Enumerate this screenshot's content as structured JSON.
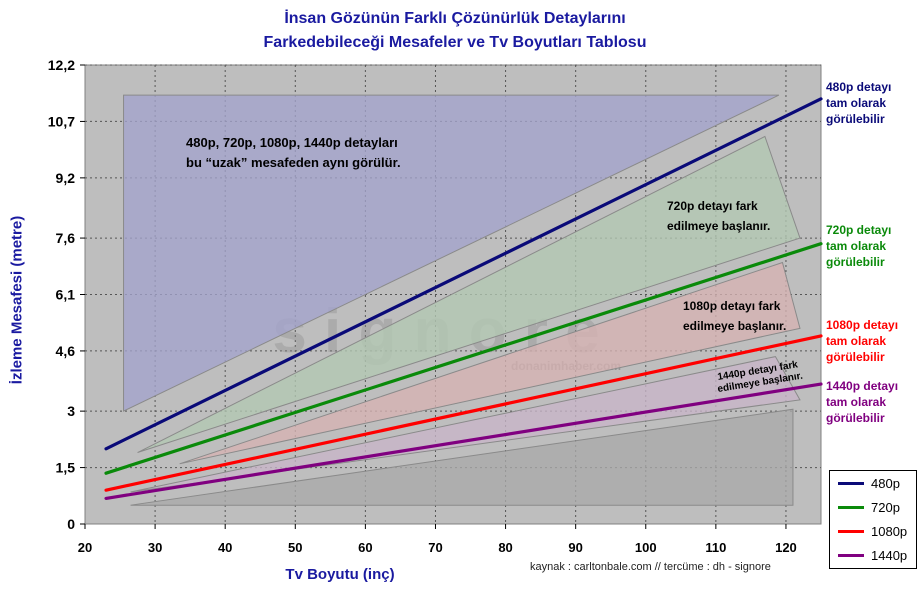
{
  "title": {
    "line1": "İnsan Gözünün Farklı Çözünürlük Detaylarını",
    "line2": "Farkedebileceği Mesafeler ve Tv Boyutları Tablosu"
  },
  "source": "kaynak : carltonbale.com // tercüme : dh - signore",
  "watermark": {
    "main": "s i g n o r e",
    "sub": "donanimhaber.com"
  },
  "chart_data": {
    "type": "line",
    "xlabel": "Tv Boyutu (inç)",
    "ylabel": "İzleme Mesafesi (metre)",
    "xlim": [
      20,
      125
    ],
    "ylim": [
      0,
      12.2
    ],
    "x_ticks": [
      20,
      30,
      40,
      50,
      60,
      70,
      80,
      90,
      100,
      110,
      120
    ],
    "y_ticks": [
      0,
      1.5,
      3,
      4.6,
      6.1,
      7.6,
      9.2,
      10.7,
      12.2
    ],
    "y_tick_labels": [
      "0",
      "1,5",
      "3",
      "4,6",
      "6,1",
      "7,6",
      "9,2",
      "10,7",
      "12,2"
    ],
    "grid": true,
    "legend_position": "bottom-right",
    "series": [
      {
        "name": "480p",
        "color": "#0a0a78",
        "x": [
          23,
          125
        ],
        "y": [
          2.0,
          11.3
        ]
      },
      {
        "name": "720p",
        "color": "#0a8a0a",
        "x": [
          23,
          125
        ],
        "y": [
          1.35,
          7.45
        ]
      },
      {
        "name": "1080p",
        "color": "#ff0000",
        "x": [
          23,
          125
        ],
        "y": [
          0.9,
          5.0
        ]
      },
      {
        "name": "1440p",
        "color": "#800080",
        "x": [
          23,
          125
        ],
        "y": [
          0.68,
          3.72
        ]
      }
    ],
    "regions": [
      {
        "fill": "#a3a3cc",
        "points": [
          [
            25.5,
            11.4
          ],
          [
            119,
            11.4
          ],
          [
            25.5,
            3.0
          ]
        ],
        "label": [
          "480p, 720p, 1080p, 1440p detayları",
          "bu “uzak” mesafeden aynı görülür."
        ]
      },
      {
        "fill": "#b2c8b2",
        "points": [
          [
            117,
            10.3
          ],
          [
            122,
            7.6
          ],
          [
            27.5,
            1.9
          ]
        ],
        "label": [
          "720p detayı fark",
          "edilmeye başlanır."
        ]
      },
      {
        "fill": "#d6b2b2",
        "points": [
          [
            119.5,
            6.95
          ],
          [
            122,
            5.2
          ],
          [
            33.5,
            1.6
          ]
        ],
        "label": [
          "1080p detayı fark",
          "edilmeye başlanır."
        ]
      },
      {
        "fill": "#c8b5c8",
        "points": [
          [
            118.5,
            4.45
          ],
          [
            122,
            3.3
          ],
          [
            26.5,
            0.85
          ]
        ],
        "label": [
          "1440p detayı fark",
          "edilmeye başlanır."
        ]
      },
      {
        "fill": "#a9a9a9",
        "points": [
          [
            121,
            3.05
          ],
          [
            121,
            0.5
          ],
          [
            26.5,
            0.5
          ]
        ],
        "label": []
      }
    ],
    "right_annotations": [
      {
        "series": "480p",
        "color": "#0a0a78",
        "lines": [
          "480p detayı",
          "tam olarak",
          "görülebilir"
        ]
      },
      {
        "series": "720p",
        "color": "#0a8a0a",
        "lines": [
          "720p detayı",
          "tam olarak",
          "görülebilir"
        ]
      },
      {
        "series": "1080p",
        "color": "#ff0000",
        "lines": [
          "1080p detayı",
          "tam olarak",
          "görülebilir"
        ]
      },
      {
        "series": "1440p",
        "color": "#800080",
        "lines": [
          "1440p detayı",
          "tam olarak",
          "görülebilir"
        ]
      }
    ]
  }
}
